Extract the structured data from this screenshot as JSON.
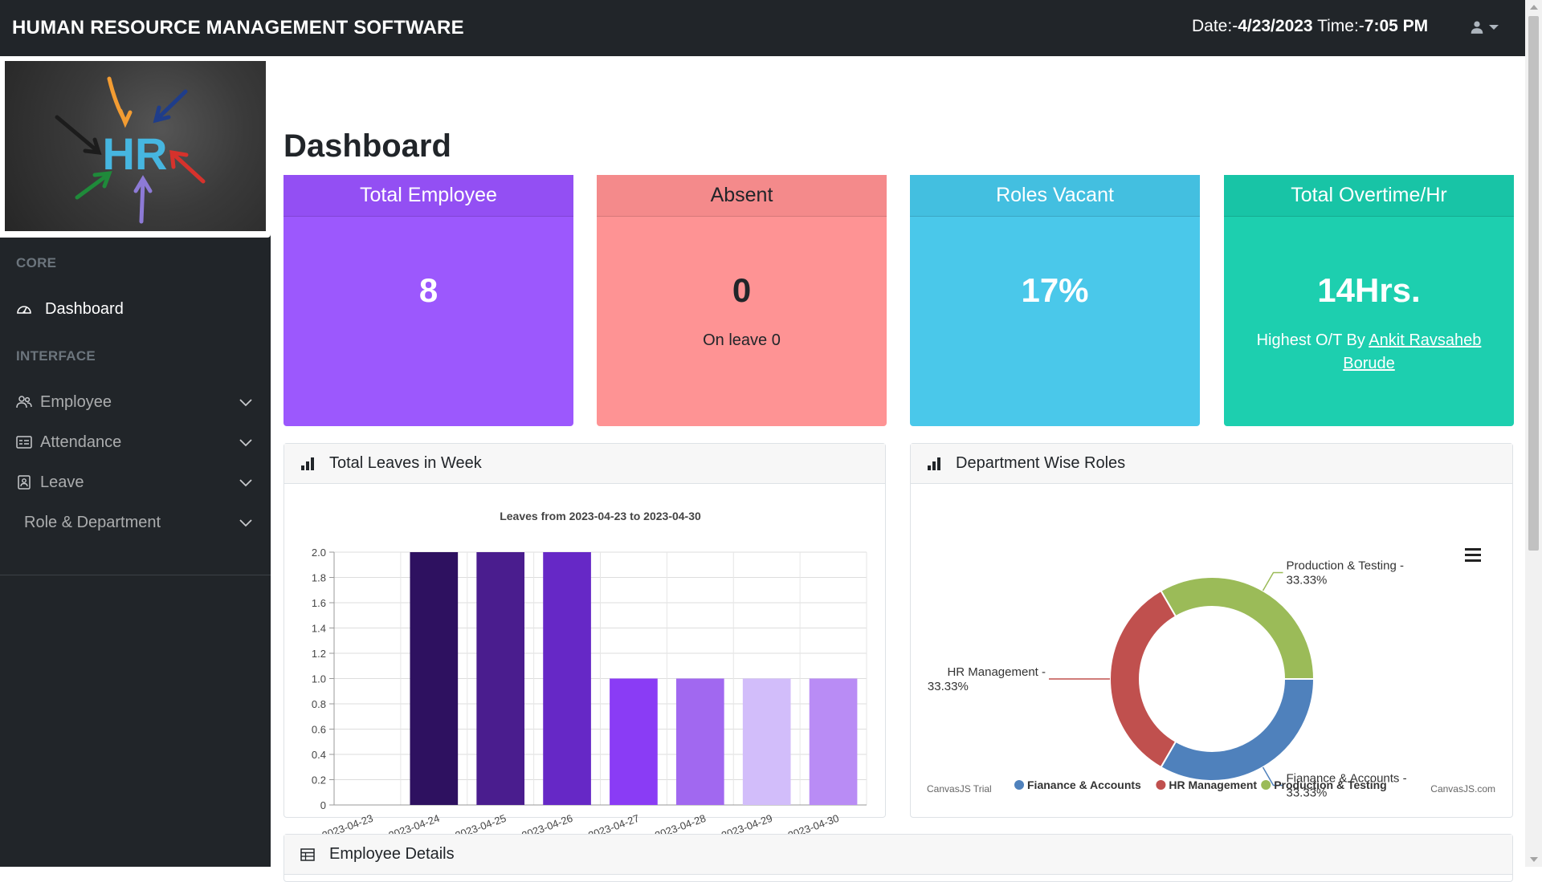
{
  "header": {
    "title": "HUMAN RESOURCE MANAGEMENT SOFTWARE",
    "date_label": "Date:-",
    "date_value": "4/23/2023",
    "time_label": " Time:-",
    "time_value": "7:05 PM",
    "user_icon": "user-icon"
  },
  "sidebar": {
    "logo_text": "HR",
    "core_heading": "CORE",
    "interface_heading": "INTERFACE",
    "items": [
      {
        "label": "Dashboard",
        "icon": "gauge-icon"
      },
      {
        "label": "Employee",
        "icon": "people-icon"
      },
      {
        "label": "Attendance",
        "icon": "id-card-icon"
      },
      {
        "label": "Leave",
        "icon": "clipboard-person-icon"
      },
      {
        "label": "Role & Department"
      }
    ]
  },
  "main": {
    "page_title": "Dashboard",
    "cards": [
      {
        "title": "Total Employee",
        "value": "8",
        "color": "#9c58fd"
      },
      {
        "title": "Absent",
        "value": "0",
        "sub": "On leave 0",
        "color": "#fe9394"
      },
      {
        "title": "Roles Vacant",
        "value": "17%",
        "color": "#4ac8ea"
      },
      {
        "title": "Total Overtime/Hr",
        "value": "14Hrs.",
        "sub_prefix": "Highest O/T By ",
        "sub_link": "Ankit Ravsaheb Borude",
        "color": "#1dcfaf"
      }
    ],
    "leaves_panel_title": "Total Leaves in Week",
    "roles_panel_title": "Department Wise Roles",
    "employee_panel_title": "Employee Details",
    "canvas_trial": "CanvasJS Trial",
    "canvas_link": "CanvasJS.com"
  },
  "chart_data": [
    {
      "type": "bar",
      "title": "Leaves from 2023-04-23 to 2023-04-30",
      "categories": [
        "2023-04-23",
        "2023-04-24",
        "2023-04-25",
        "2023-04-26",
        "2023-04-27",
        "2023-04-28",
        "2023-04-29",
        "2023-04-30"
      ],
      "values": [
        0,
        2,
        2,
        2,
        1,
        1,
        1,
        1
      ],
      "colors": [
        "#2e1160",
        "#2e1160",
        "#4a1d8e",
        "#6628c6",
        "#8a3cf5",
        "#a168f0",
        "#d2bdfa",
        "#b98cf5"
      ],
      "ylim": [
        0,
        2.0
      ],
      "yticks": [
        "0",
        "0.2",
        "0.4",
        "0.6",
        "0.8",
        "1.0",
        "1.2",
        "1.4",
        "1.6",
        "1.8",
        "2.0"
      ],
      "grid": true
    },
    {
      "type": "pie",
      "donut": true,
      "slices": [
        {
          "name": "Fianance & Accounts",
          "value": 33.33,
          "label": "Fianance & Accounts - 33.33%",
          "color": "#4f81bc"
        },
        {
          "name": "HR Management",
          "value": 33.33,
          "label": "HR Management - 33.33%",
          "color": "#c0504e"
        },
        {
          "name": "Production & Testing",
          "value": 33.33,
          "label": "Production & Testing - 33.33%",
          "color": "#9bbb58"
        }
      ],
      "legend": "bottom"
    }
  ]
}
